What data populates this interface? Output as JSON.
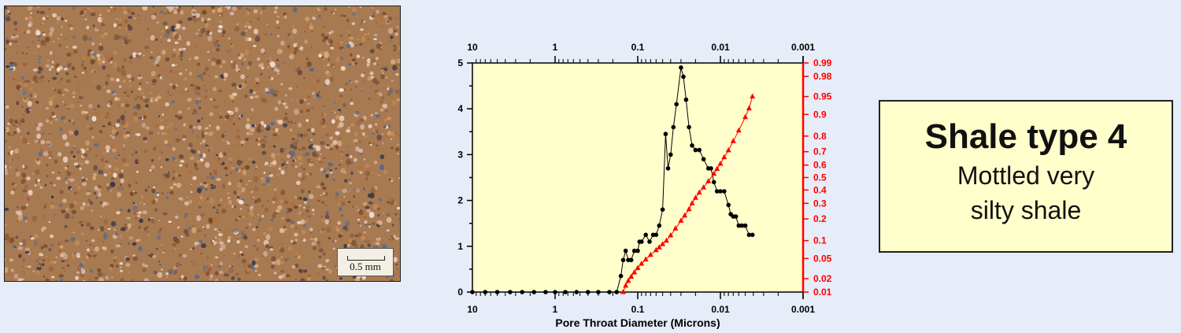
{
  "micrograph": {
    "scale_label": "0.5 mm"
  },
  "title_box": {
    "line1": "Shale type 4",
    "line2": "Mottled very",
    "line3": "silty shale"
  },
  "chart_data": {
    "type": "line",
    "xlabel": "Pore Throat Diameter (Microns)",
    "x_scale": "log",
    "x_reversed": true,
    "xlim": [
      10,
      0.001
    ],
    "x_ticks": [
      "10",
      "1",
      "0.1",
      "0.01",
      "0.001"
    ],
    "ylim": [
      0,
      5
    ],
    "y_ticks": [
      "0",
      "1",
      "2",
      "3",
      "4",
      "5"
    ],
    "y2_scale": "probability",
    "y2_ticks": [
      "0.01",
      "0.02",
      "0.05",
      "0.1",
      "0.2",
      "0.3",
      "0.4",
      "0.5",
      "0.6",
      "0.7",
      "0.8",
      "0.9",
      "0.95",
      "0.98",
      "0.99"
    ],
    "grid": false,
    "plot_background": "#ffffcc",
    "series": [
      {
        "axis": "left",
        "color": "#000000",
        "marker": "circle",
        "points": [
          [
            10,
            0
          ],
          [
            7,
            0
          ],
          [
            5,
            0
          ],
          [
            3.5,
            0
          ],
          [
            2.5,
            0
          ],
          [
            1.8,
            0
          ],
          [
            1.3,
            0
          ],
          [
            1,
            0
          ],
          [
            0.75,
            0
          ],
          [
            0.55,
            0
          ],
          [
            0.4,
            0
          ],
          [
            0.3,
            0
          ],
          [
            0.22,
            0
          ],
          [
            0.18,
            0
          ],
          [
            0.16,
            0.35
          ],
          [
            0.15,
            0.7
          ],
          [
            0.14,
            0.9
          ],
          [
            0.13,
            0.7
          ],
          [
            0.12,
            0.7
          ],
          [
            0.11,
            0.9
          ],
          [
            0.1,
            0.9
          ],
          [
            0.095,
            1.1
          ],
          [
            0.09,
            1.1
          ],
          [
            0.08,
            1.25
          ],
          [
            0.072,
            1.1
          ],
          [
            0.065,
            1.25
          ],
          [
            0.06,
            1.25
          ],
          [
            0.055,
            1.45
          ],
          [
            0.05,
            1.8
          ],
          [
            0.046,
            3.45
          ],
          [
            0.043,
            2.7
          ],
          [
            0.04,
            3.0
          ],
          [
            0.037,
            3.6
          ],
          [
            0.034,
            4.1
          ],
          [
            0.03,
            4.9
          ],
          [
            0.028,
            4.7
          ],
          [
            0.026,
            4.2
          ],
          [
            0.024,
            3.6
          ],
          [
            0.022,
            3.2
          ],
          [
            0.02,
            3.1
          ],
          [
            0.018,
            3.1
          ],
          [
            0.016,
            2.9
          ],
          [
            0.014,
            2.7
          ],
          [
            0.013,
            2.7
          ],
          [
            0.012,
            2.4
          ],
          [
            0.011,
            2.2
          ],
          [
            0.01,
            2.2
          ],
          [
            0.009,
            2.2
          ],
          [
            0.008,
            1.9
          ],
          [
            0.0075,
            1.7
          ],
          [
            0.007,
            1.65
          ],
          [
            0.0065,
            1.65
          ],
          [
            0.006,
            1.45
          ],
          [
            0.0055,
            1.45
          ],
          [
            0.005,
            1.45
          ],
          [
            0.0045,
            1.25
          ],
          [
            0.0041,
            1.25
          ]
        ]
      },
      {
        "axis": "right",
        "color": "#ff0000",
        "marker": "triangle",
        "points": [
          [
            0.15,
            0.01
          ],
          [
            0.14,
            0.014
          ],
          [
            0.13,
            0.018
          ],
          [
            0.12,
            0.022
          ],
          [
            0.11,
            0.027
          ],
          [
            0.1,
            0.033
          ],
          [
            0.09,
            0.04
          ],
          [
            0.08,
            0.048
          ],
          [
            0.07,
            0.058
          ],
          [
            0.06,
            0.07
          ],
          [
            0.055,
            0.078
          ],
          [
            0.05,
            0.088
          ],
          [
            0.045,
            0.1
          ],
          [
            0.04,
            0.12
          ],
          [
            0.035,
            0.15
          ],
          [
            0.03,
            0.19
          ],
          [
            0.027,
            0.22
          ],
          [
            0.024,
            0.26
          ],
          [
            0.022,
            0.3
          ],
          [
            0.02,
            0.34
          ],
          [
            0.018,
            0.38
          ],
          [
            0.016,
            0.42
          ],
          [
            0.014,
            0.47
          ],
          [
            0.012,
            0.53
          ],
          [
            0.011,
            0.57
          ],
          [
            0.01,
            0.61
          ],
          [
            0.009,
            0.66
          ],
          [
            0.008,
            0.71
          ],
          [
            0.007,
            0.77
          ],
          [
            0.006,
            0.83
          ],
          [
            0.005,
            0.89
          ],
          [
            0.0045,
            0.92
          ],
          [
            0.0041,
            0.95
          ]
        ]
      }
    ]
  }
}
